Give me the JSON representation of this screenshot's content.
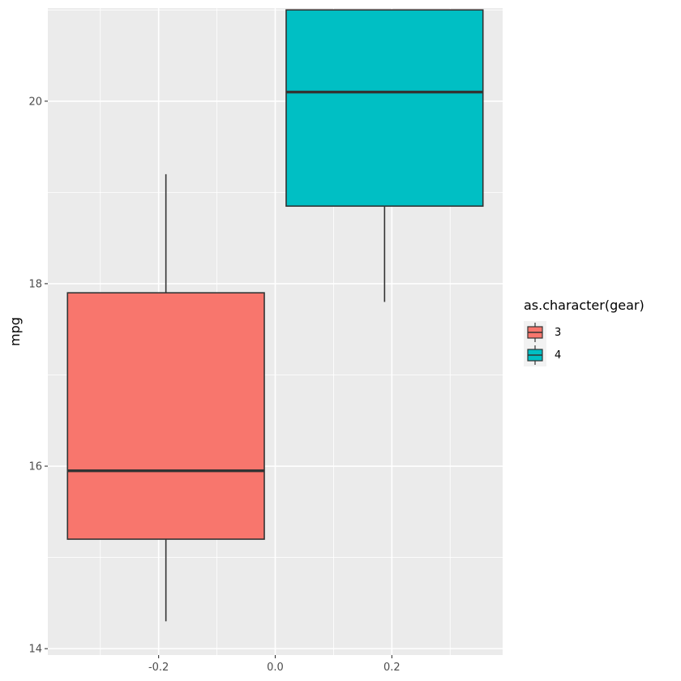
{
  "chart_data": {
    "type": "box",
    "title": "",
    "xlabel": "",
    "ylabel": "mpg",
    "xlim": [
      -0.39,
      0.39
    ],
    "ylim": [
      13.93,
      21.02
    ],
    "x_ticks": [
      -0.2,
      0.0,
      0.2
    ],
    "x_tick_labels": [
      "-0.2",
      "0.0",
      "0.2"
    ],
    "y_ticks": [
      14,
      16,
      18,
      20
    ],
    "y_tick_labels": [
      "14",
      "16",
      "18",
      "20"
    ],
    "grid": true,
    "legend": {
      "title": "as.character(gear)",
      "position": "right"
    },
    "series": [
      {
        "name": "3",
        "color": "#F8766D",
        "x_center": -0.1875,
        "width": 0.3375,
        "whisker_low": 14.3,
        "q1": 15.2,
        "median": 15.95,
        "q3": 17.9,
        "whisker_high": 19.2
      },
      {
        "name": "4",
        "color": "#00BFC4",
        "x_center": 0.1875,
        "width": 0.3375,
        "whisker_low": 17.8,
        "q1": 18.85,
        "median": 20.1,
        "q3": 21.0,
        "whisker_high": 21.0
      }
    ]
  }
}
